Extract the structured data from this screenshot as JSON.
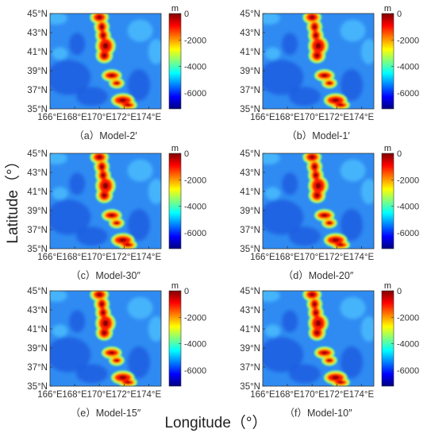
{
  "figure": {
    "xlabel": "Longitude（°）",
    "ylabel": "Latitude（°）"
  },
  "colorbar": {
    "unit": "m",
    "ticks": [
      "0",
      "-2000",
      "-4000",
      "-6000"
    ],
    "tick_values": [
      0,
      -2000,
      -4000,
      -6000
    ],
    "range": [
      -7200,
      0
    ],
    "colormap": "jet",
    "colors": [
      "#00007f",
      "#0000ff",
      "#007fff",
      "#00ffff",
      "#7fff7f",
      "#ffff00",
      "#ff7f00",
      "#ff0000",
      "#7f0000"
    ]
  },
  "axes": {
    "x_ticks": [
      "166°E",
      "168°E",
      "170°E",
      "172°E",
      "174°E"
    ],
    "y_ticks": [
      "45°N",
      "43°N",
      "41°N",
      "39°N",
      "37°N",
      "35°N"
    ]
  },
  "chart_data": [
    {
      "type": "heatmap",
      "caption": "（a）Model-2′",
      "xlim": [
        166,
        175
      ],
      "ylim": [
        35,
        45
      ],
      "x_ticks": [
        166,
        168,
        170,
        172,
        174
      ],
      "y_ticks": [
        35,
        37,
        39,
        41,
        43,
        45
      ],
      "z_range": [
        -7200,
        0
      ],
      "colorbar_label": "m"
    },
    {
      "type": "heatmap",
      "caption": "（b）Model-1′",
      "xlim": [
        166,
        175
      ],
      "ylim": [
        35,
        45
      ],
      "x_ticks": [
        166,
        168,
        170,
        172,
        174
      ],
      "y_ticks": [
        35,
        37,
        39,
        41,
        43,
        45
      ],
      "z_range": [
        -7200,
        0
      ],
      "colorbar_label": "m"
    },
    {
      "type": "heatmap",
      "caption": "（c）Model-30″",
      "xlim": [
        166,
        175
      ],
      "ylim": [
        35,
        45
      ],
      "x_ticks": [
        166,
        168,
        170,
        172,
        174
      ],
      "y_ticks": [
        35,
        37,
        39,
        41,
        43,
        45
      ],
      "z_range": [
        -7200,
        0
      ],
      "colorbar_label": "m"
    },
    {
      "type": "heatmap",
      "caption": "（d）Model-20″",
      "xlim": [
        166,
        175
      ],
      "ylim": [
        35,
        45
      ],
      "x_ticks": [
        166,
        168,
        170,
        172,
        174
      ],
      "y_ticks": [
        35,
        37,
        39,
        41,
        43,
        45
      ],
      "z_range": [
        -7200,
        0
      ],
      "colorbar_label": "m"
    },
    {
      "type": "heatmap",
      "caption": "（e）Model-15″",
      "xlim": [
        166,
        175
      ],
      "ylim": [
        35,
        45
      ],
      "x_ticks": [
        166,
        168,
        170,
        172,
        174
      ],
      "y_ticks": [
        35,
        37,
        39,
        41,
        43,
        45
      ],
      "z_range": [
        -7200,
        0
      ],
      "colorbar_label": "m"
    },
    {
      "type": "heatmap",
      "caption": "（f）Model-10″",
      "xlim": [
        166,
        175
      ],
      "ylim": [
        35,
        45
      ],
      "x_ticks": [
        166,
        168,
        170,
        172,
        174
      ],
      "y_ticks": [
        35,
        37,
        39,
        41,
        43,
        45
      ],
      "z_range": [
        -7200,
        0
      ],
      "colorbar_label": "m"
    }
  ]
}
